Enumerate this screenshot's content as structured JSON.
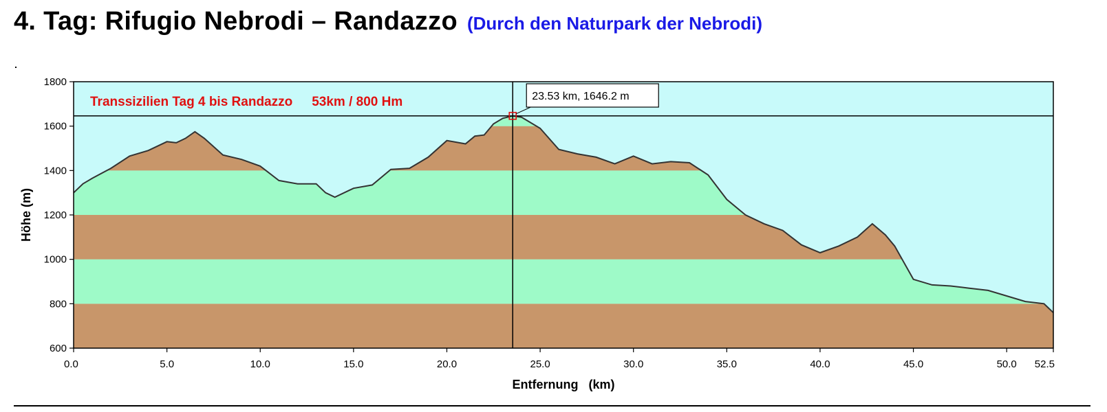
{
  "header": {
    "title": "4. Tag: Rifugio Nebrodi – Randazzo",
    "subtitle": "(Durch den Naturpark der Nebrodi)"
  },
  "chart_data": {
    "type": "area",
    "title": "Transsizilien Tag 4 bis Randazzo",
    "title_stats": "53km / 800 Hm",
    "xlabel": "Entfernung   (km)",
    "ylabel": "Höhe (m)",
    "xlim": [
      0,
      52.5
    ],
    "ylim": [
      600,
      1800
    ],
    "x_ticks": [
      "0.0",
      "5.0",
      "10.0",
      "15.0",
      "20.0",
      "25.0",
      "30.0",
      "35.0",
      "40.0",
      "45.0",
      "50.0",
      "52.5"
    ],
    "x_tick_values": [
      0,
      5,
      10,
      15,
      20,
      25,
      30,
      35,
      40,
      45,
      50,
      52.5
    ],
    "y_ticks": [
      "600",
      "800",
      "1000",
      "1200",
      "1400",
      "1600",
      "1800"
    ],
    "y_tick_values": [
      600,
      800,
      1000,
      1200,
      1400,
      1600,
      1800
    ],
    "band_colors": [
      "#c8966a",
      "#9efac8"
    ],
    "sky_color": "#c8fafa",
    "line_color": "#333333",
    "cursor": {
      "x": 23.53,
      "y": 1646.2,
      "label": "23.53 km, 1646.2 m"
    },
    "series": [
      {
        "x": [
          0,
          0.5,
          1,
          2,
          3,
          4,
          5,
          5.5,
          6,
          6.5,
          7,
          8,
          9,
          10,
          11,
          12,
          13,
          13.5,
          14,
          15,
          16,
          17,
          18,
          19,
          20,
          21,
          21.5,
          22,
          22.5,
          23,
          23.53,
          24,
          25,
          26,
          27,
          28,
          29,
          30,
          31,
          32,
          33,
          34,
          35,
          36,
          37,
          38,
          39,
          40,
          41,
          42,
          42.8,
          43.5,
          44,
          45,
          46,
          47,
          48,
          49,
          50,
          51,
          52,
          52.5
        ],
        "y": [
          1300,
          1340,
          1365,
          1410,
          1465,
          1490,
          1530,
          1525,
          1545,
          1575,
          1545,
          1470,
          1450,
          1420,
          1355,
          1340,
          1340,
          1300,
          1280,
          1320,
          1335,
          1405,
          1410,
          1460,
          1535,
          1520,
          1555,
          1560,
          1610,
          1635,
          1646,
          1640,
          1590,
          1495,
          1475,
          1460,
          1430,
          1465,
          1430,
          1440,
          1435,
          1380,
          1270,
          1200,
          1160,
          1130,
          1065,
          1030,
          1060,
          1100,
          1160,
          1110,
          1060,
          910,
          885,
          880,
          870,
          860,
          835,
          810,
          800,
          760
        ]
      }
    ]
  }
}
